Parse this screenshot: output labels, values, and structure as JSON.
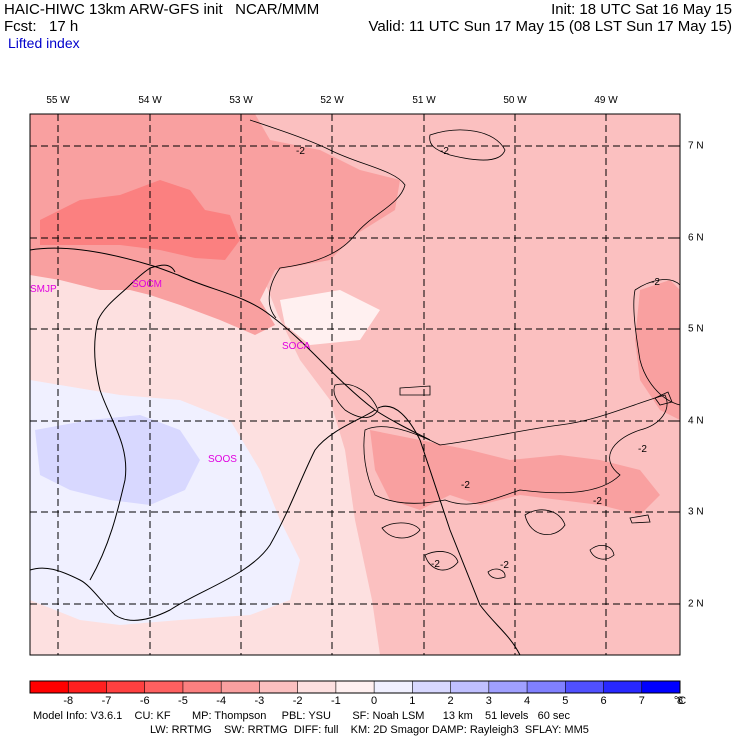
{
  "header": {
    "model_line": "HAIC-HIWC 13km ARW-GFS init   NCAR/MMM",
    "forecast_line": "Fcst:   17 h",
    "field_name": "Lifted index",
    "init_line": "Init: 18 UTC Sat 16 May 15",
    "valid_line": "Valid: 11 UTC Sun 17 May 15 (08 LST Sun 17 May 15)"
  },
  "map": {
    "longitude_labels": [
      "55 W",
      "54 W",
      "53 W",
      "52 W",
      "51 W",
      "50 W",
      "49 W"
    ],
    "latitude_labels": [
      "7 N",
      "6 N",
      "5 N",
      "4 N",
      "3 N",
      "2 N"
    ],
    "station_labels": [
      "SMJP",
      "SOCM",
      "SOCA",
      "SOOS"
    ],
    "contour_labels": [
      "-2",
      "-2",
      "-2",
      "-2",
      "-2",
      "-2",
      "-2",
      "-2"
    ],
    "station_color": "#e000e0"
  },
  "colorbar": {
    "tick_labels": [
      "-8",
      "-7",
      "-6",
      "-5",
      "-4",
      "-3",
      "-2",
      "-1",
      "0",
      "1",
      "2",
      "3",
      "4",
      "5",
      "6",
      "7",
      "8"
    ],
    "unit": "°C",
    "colors": [
      "#ff0000",
      "#ff2020",
      "#ff4040",
      "#fe6060",
      "#fb8080",
      "#f9a0a0",
      "#fbc0c0",
      "#fde0e0",
      "#fff0f0",
      "#f0f0ff",
      "#d8d8ff",
      "#c0c0ff",
      "#a0a0ff",
      "#8080ff",
      "#5050ff",
      "#2828ff",
      "#0000ff"
    ]
  },
  "footer": {
    "line1": "Model Info: V3.6.1    CU: KF       MP: Thompson     PBL: YSU       SF: Noah LSM      13 km    51 levels   60 sec",
    "line2": "LW: RRTMG    SW: RRTMG  DIFF: full    KM: 2D Smagor DAMP: Rayleigh3  SFLAY: MM5"
  }
}
